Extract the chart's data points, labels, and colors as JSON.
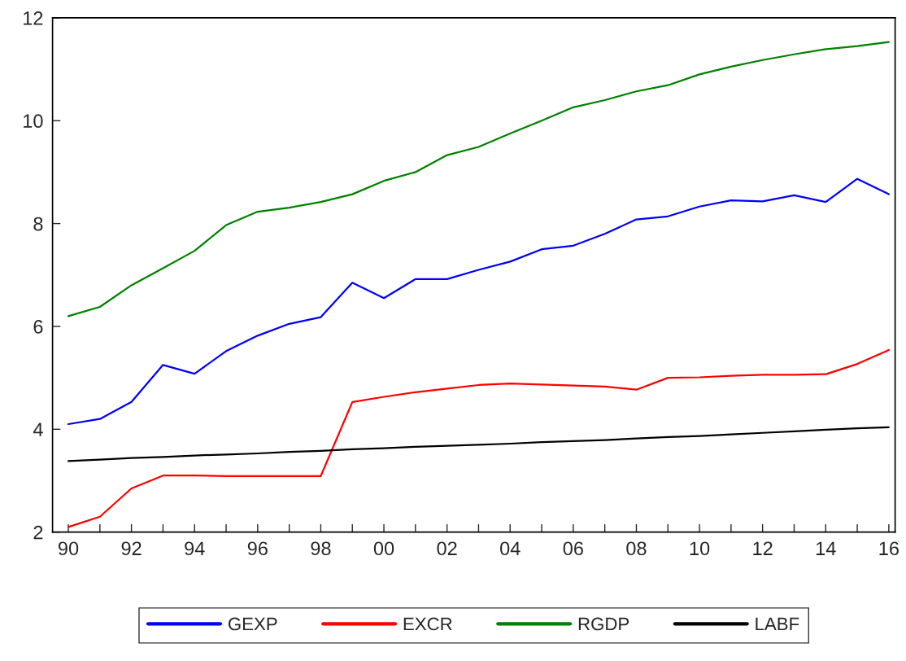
{
  "chart_data": {
    "type": "line",
    "x": [
      1990,
      1991,
      1992,
      1993,
      1994,
      1995,
      1996,
      1997,
      1998,
      1999,
      2000,
      2001,
      2002,
      2003,
      2004,
      2005,
      2006,
      2007,
      2008,
      2009,
      2010,
      2011,
      2012,
      2013,
      2014,
      2015,
      2016
    ],
    "series": [
      {
        "name": "GEXP",
        "color": "#0000ff",
        "values": [
          4.1,
          4.2,
          4.53,
          5.25,
          5.08,
          5.52,
          5.82,
          6.05,
          6.18,
          6.85,
          6.55,
          6.92,
          6.92,
          7.1,
          7.26,
          7.5,
          7.57,
          7.8,
          8.08,
          8.14,
          8.33,
          8.45,
          8.43,
          8.55,
          8.42,
          8.87,
          8.57
        ]
      },
      {
        "name": "EXCR",
        "color": "#ff0000",
        "values": [
          2.1,
          2.3,
          2.85,
          3.1,
          3.1,
          3.09,
          3.09,
          3.09,
          3.09,
          4.53,
          4.63,
          4.72,
          4.79,
          4.86,
          4.89,
          4.87,
          4.85,
          4.83,
          4.77,
          5.0,
          5.01,
          5.04,
          5.06,
          5.06,
          5.07,
          5.27,
          5.54
        ]
      },
      {
        "name": "RGDP",
        "color": "#008000",
        "values": [
          6.2,
          6.38,
          6.8,
          7.13,
          7.47,
          7.97,
          8.23,
          8.31,
          8.42,
          8.57,
          8.83,
          9.0,
          9.33,
          9.49,
          9.75,
          10.0,
          10.26,
          10.4,
          10.57,
          10.69,
          10.9,
          11.05,
          11.18,
          11.29,
          11.39,
          11.45,
          11.53
        ]
      },
      {
        "name": "LABF",
        "color": "#000000",
        "values": [
          3.38,
          3.41,
          3.44,
          3.46,
          3.49,
          3.51,
          3.53,
          3.56,
          3.58,
          3.61,
          3.63,
          3.66,
          3.68,
          3.7,
          3.72,
          3.75,
          3.77,
          3.79,
          3.82,
          3.85,
          3.87,
          3.9,
          3.93,
          3.96,
          3.99,
          4.02,
          4.04
        ]
      }
    ],
    "xlim": [
      1989.5,
      2016.2
    ],
    "xticks": [
      {
        "value": 1990,
        "label": "90"
      },
      {
        "value": 1991,
        "label": null
      },
      {
        "value": 1992,
        "label": "92"
      },
      {
        "value": 1993,
        "label": null
      },
      {
        "value": 1994,
        "label": "94"
      },
      {
        "value": 1995,
        "label": null
      },
      {
        "value": 1996,
        "label": "96"
      },
      {
        "value": 1997,
        "label": null
      },
      {
        "value": 1998,
        "label": "98"
      },
      {
        "value": 1999,
        "label": null
      },
      {
        "value": 2000,
        "label": "00"
      },
      {
        "value": 2001,
        "label": null
      },
      {
        "value": 2002,
        "label": "02"
      },
      {
        "value": 2003,
        "label": null
      },
      {
        "value": 2004,
        "label": "04"
      },
      {
        "value": 2005,
        "label": null
      },
      {
        "value": 2006,
        "label": "06"
      },
      {
        "value": 2007,
        "label": null
      },
      {
        "value": 2008,
        "label": "08"
      },
      {
        "value": 2009,
        "label": null
      },
      {
        "value": 2010,
        "label": "10"
      },
      {
        "value": 2011,
        "label": null
      },
      {
        "value": 2012,
        "label": "12"
      },
      {
        "value": 2013,
        "label": null
      },
      {
        "value": 2014,
        "label": "14"
      },
      {
        "value": 2015,
        "label": null
      },
      {
        "value": 2016,
        "label": "16"
      }
    ],
    "ylim": [
      2,
      12
    ],
    "yticks": [
      2,
      4,
      6,
      8,
      10,
      12
    ],
    "grid": false,
    "legend": "bottom",
    "line_style": "solid",
    "marker": "none"
  }
}
